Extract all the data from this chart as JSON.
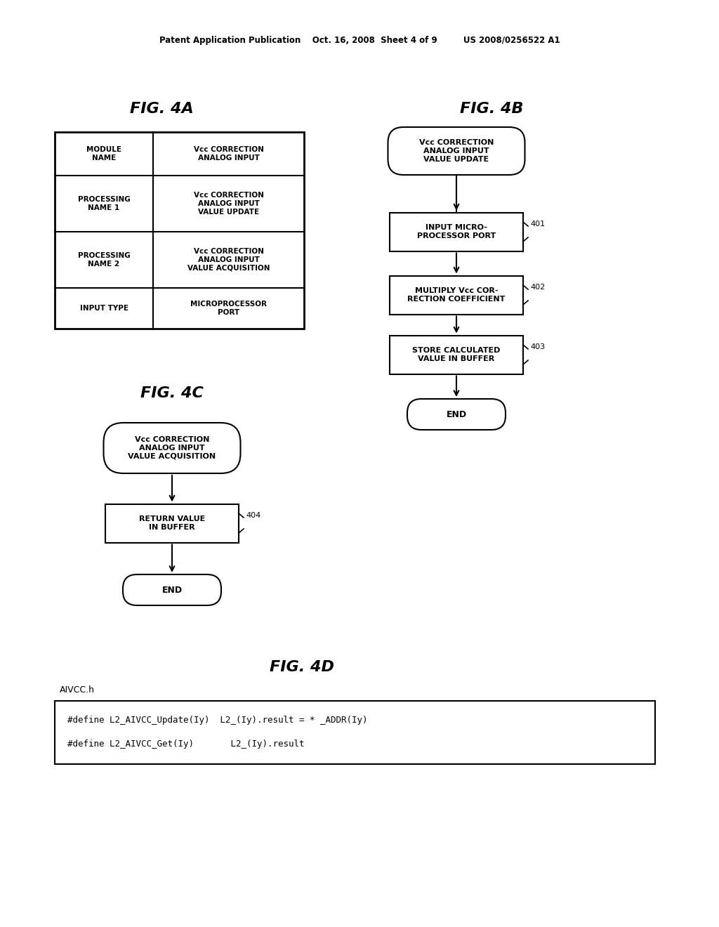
{
  "bg_color": "#ffffff",
  "header_text": "Patent Application Publication    Oct. 16, 2008  Sheet 4 of 9         US 2008/0256522 A1",
  "fig4a_title": "FIG. 4A",
  "fig4b_title": "FIG. 4B",
  "fig4c_title": "FIG. 4C",
  "fig4d_title": "FIG. 4D",
  "table_rows": [
    [
      "MODULE\nNAME",
      "Vcc CORRECTION\nANALOG INPUT"
    ],
    [
      "PROCESSING\nNAME 1",
      "Vcc CORRECTION\nANALOG INPUT\nVALUE UPDATE"
    ],
    [
      "PROCESSING\nNAME 2",
      "Vcc CORRECTION\nANALOG INPUT\nVALUE ACQUISITION"
    ],
    [
      "INPUT TYPE",
      "MICROPROCESSOR\nPORT"
    ]
  ],
  "fig4b_oval": "Vcc CORRECTION\nANALOG INPUT\nVALUE UPDATE",
  "fig4b_box1": "INPUT MICRO-\nPROCESSOR PORT",
  "fig4b_box2": "MULTIPLY Vcc COR-\nRECTION COEFFICIENT",
  "fig4b_box3": "STORE CALCULATED\nVALUE IN BUFFER",
  "fig4b_end": "END",
  "fig4b_label1": "401",
  "fig4b_label2": "402",
  "fig4b_label3": "403",
  "fig4c_oval": "Vcc CORRECTION\nANALOG INPUT\nVALUE ACQUISITION",
  "fig4c_box1": "RETURN VALUE\nIN BUFFER",
  "fig4c_label1": "404",
  "fig4c_end": "END",
  "fig4d_label": "AIVCC.h",
  "fig4d_line1": "#define L2_AIVCC_Update(Iy)  L2_(Iy).result = * _ADDR(Iy)",
  "fig4d_line2": "#define L2_AIVCC_Get(Iy)       L2_(Iy).result"
}
